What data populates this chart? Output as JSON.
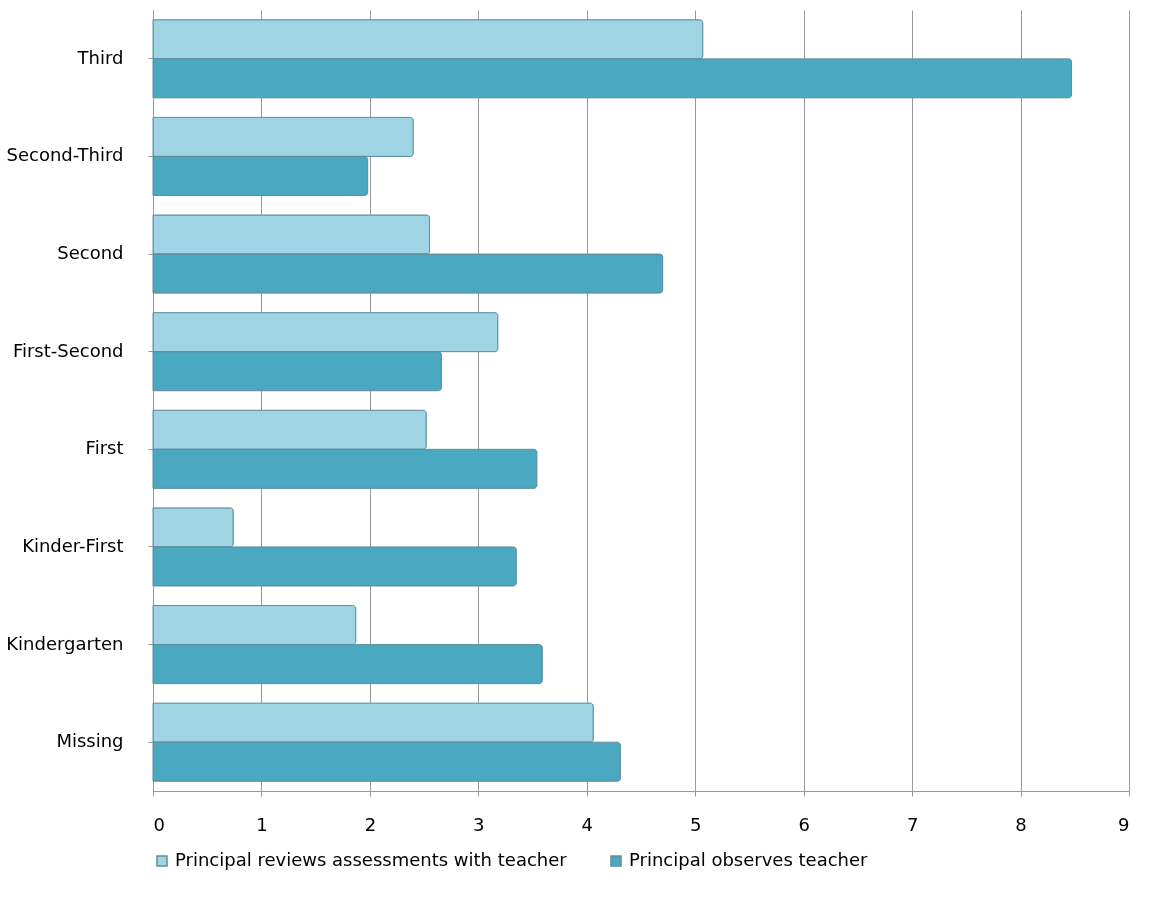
{
  "chart_data": {
    "type": "bar",
    "orientation": "horizontal",
    "categories": [
      "Third",
      "Second-Third",
      "Second",
      "First-Second",
      "First",
      "Kinder-First",
      "Kindergarten",
      "Missing"
    ],
    "series": [
      {
        "name": "Principal reviews assessments with teacher",
        "color": "#9fd4e4",
        "values": [
          5.07,
          2.4,
          2.55,
          3.18,
          2.52,
          0.74,
          1.87,
          4.06
        ]
      },
      {
        "name": "Principal observes teacher",
        "color": "#4aa8c0",
        "values": [
          8.47,
          1.98,
          4.7,
          2.66,
          3.54,
          3.35,
          3.59,
          4.31
        ]
      }
    ],
    "xlim": [
      0,
      9
    ],
    "xticks": [
      0,
      1,
      2,
      3,
      4,
      5,
      6,
      7,
      8,
      9
    ],
    "grid": "x",
    "legend": "bottom"
  }
}
